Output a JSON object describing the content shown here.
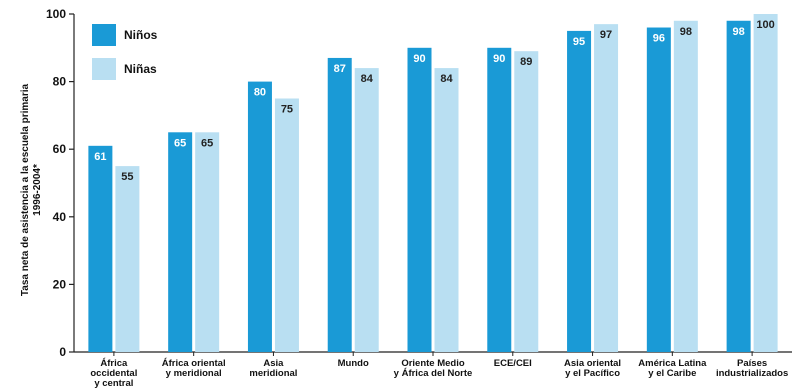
{
  "chart_data": {
    "type": "bar",
    "ylabel_lines": [
      "Tasa neta de asistencia a la escuela primaria",
      "1996-2004*"
    ],
    "ylim": [
      0,
      100
    ],
    "yticks": [
      0,
      20,
      40,
      60,
      80,
      100
    ],
    "legend_position": "top-left",
    "categories": [
      [
        "África",
        "occidental",
        "y central"
      ],
      [
        "África oriental",
        "y meridional"
      ],
      [
        "Asia",
        "meridional"
      ],
      [
        "Mundo"
      ],
      [
        "Oriente Medio",
        "y África del Norte"
      ],
      [
        "ECE/CEI"
      ],
      [
        "Asia oriental",
        "y el Pacífico"
      ],
      [
        "América Latina",
        "y el Caribe"
      ],
      [
        "Países",
        "industrializados"
      ]
    ],
    "series": [
      {
        "name": "Niños",
        "color": "#1a9ad6",
        "values": [
          61,
          65,
          80,
          87,
          90,
          90,
          95,
          96,
          98
        ]
      },
      {
        "name": "Niñas",
        "color": "#b9dff2",
        "values": [
          55,
          65,
          75,
          84,
          84,
          89,
          97,
          98,
          100
        ]
      }
    ]
  }
}
